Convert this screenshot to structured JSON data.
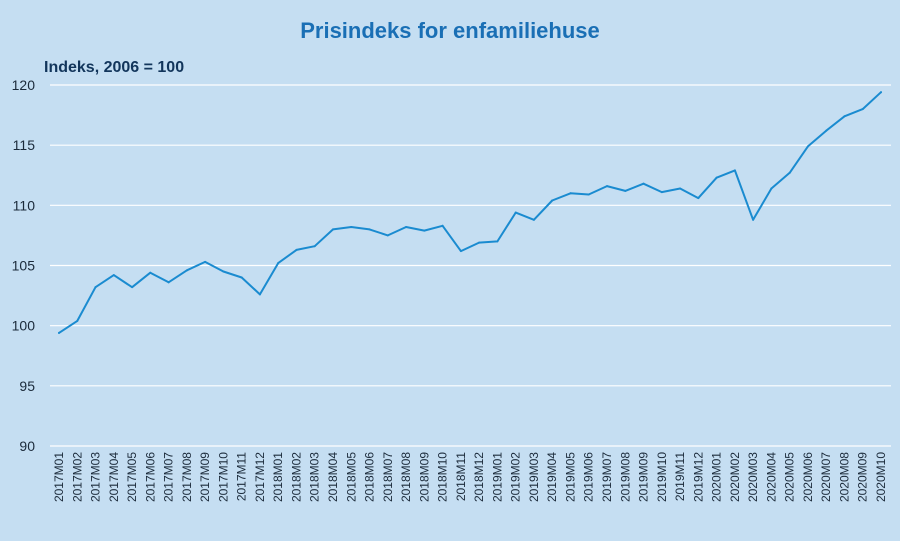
{
  "chart_data": {
    "type": "line",
    "title": "Prisindeks for enfamiliehuse",
    "ylabel": "Indeks, 2006 = 100",
    "xlabel": "",
    "ylim": [
      90,
      120
    ],
    "yticks": [
      90,
      95,
      100,
      105,
      110,
      115,
      120
    ],
    "grid": true,
    "legend": "none",
    "colors": {
      "background": "#c5def2",
      "line": "#1a8bd0",
      "grid": "#ffffff",
      "title": "#1a6fb5"
    },
    "categories": [
      "2017M01",
      "2017M02",
      "2017M03",
      "2017M04",
      "2017M05",
      "2017M06",
      "2017M07",
      "2017M08",
      "2017M09",
      "2017M10",
      "2017M11",
      "2017M12",
      "2018M01",
      "2018M02",
      "2018M03",
      "2018M04",
      "2018M05",
      "2018M06",
      "2018M07",
      "2018M08",
      "2018M09",
      "2018M10",
      "2018M11",
      "2018M12",
      "2019M01",
      "2019M02",
      "2019M03",
      "2019M04",
      "2019M05",
      "2019M06",
      "2019M07",
      "2019M08",
      "2019M09",
      "2019M10",
      "2019M11",
      "2019M12",
      "2020M01",
      "2020M02",
      "2020M03",
      "2020M04",
      "2020M05",
      "2020M06",
      "2020M07",
      "2020M08",
      "2020M09",
      "2020M10"
    ],
    "series": [
      {
        "values": [
          99.4,
          100.4,
          103.2,
          104.2,
          103.2,
          104.4,
          103.6,
          104.6,
          105.3,
          104.5,
          104.0,
          102.6,
          105.2,
          106.3,
          106.6,
          108.0,
          108.2,
          108.0,
          107.5,
          108.2,
          107.9,
          108.3,
          106.2,
          106.9,
          107.0,
          109.4,
          108.8,
          110.4,
          111.0,
          110.9,
          111.6,
          111.2,
          111.8,
          111.1,
          111.4,
          110.6,
          112.3,
          112.9,
          108.8,
          111.4,
          112.7,
          114.9,
          116.2,
          117.4,
          118.0,
          119.4
        ]
      }
    ]
  }
}
